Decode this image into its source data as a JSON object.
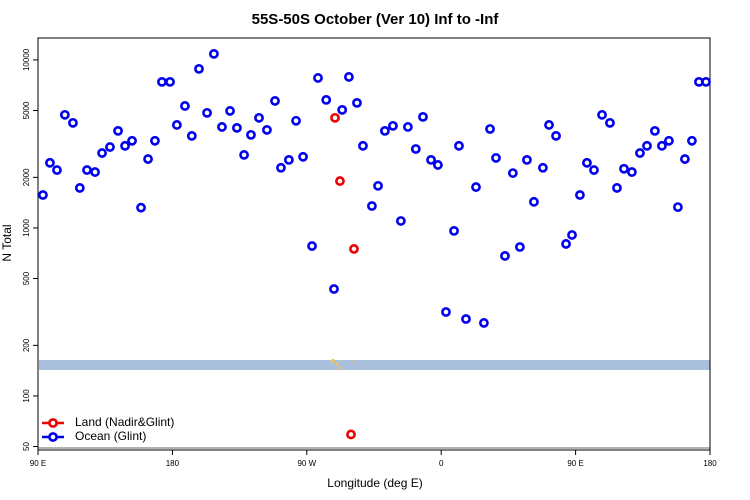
{
  "chart_data": {
    "type": "scatter",
    "title": "55S-50S October (Ver 10)   Inf to -Inf",
    "xlabel": "Longitude (deg E)",
    "ylabel": "N Total",
    "xlim": [
      90,
      540
    ],
    "xticks": [
      {
        "value": 90,
        "label": "90 E"
      },
      180,
      {
        "value": 270,
        "label": "90 W"
      },
      {
        "value": 360,
        "label": "0"
      },
      {
        "value": 450,
        "label": "90 E"
      },
      {
        "value": 540,
        "label": "180"
      }
    ],
    "ylim": [
      49,
      13500
    ],
    "yticks": [
      50,
      100,
      200,
      500,
      1000,
      2000,
      5000,
      10000
    ],
    "log_y": true,
    "legend": "lower left",
    "series": [
      {
        "name": "Land (Nadir&Glint)",
        "color": "#ee0000",
        "x": [
          288.9,
          292.2,
          301.6,
          299.6
        ],
        "values": [
          4520,
          1900,
          750,
          59
        ]
      },
      {
        "name": "Ocean (Glint)",
        "color": "#0000ee",
        "x": [
          93.3,
          98,
          102.7,
          108,
          113.4,
          118,
          122.8,
          128.2,
          132.9,
          138.2,
          143.6,
          148.3,
          153,
          159,
          163.7,
          168.3,
          173,
          178.4,
          183,
          188.4,
          193,
          197.8,
          203.2,
          207.8,
          213.2,
          218.6,
          223.2,
          228,
          232.6,
          238,
          243.3,
          248.7,
          252.7,
          258,
          262.8,
          267.5,
          273.5,
          277.5,
          283,
          288.2,
          293.7,
          298.2,
          303.6,
          307.6,
          313.6,
          317.7,
          322.3,
          327.7,
          333,
          337.7,
          343,
          347.8,
          353.2,
          357.8,
          363.2,
          368.6,
          371.9,
          376.6,
          383.3,
          388.6,
          392.7,
          396.7,
          402.7,
          408,
          412.7,
          417.4,
          422.1,
          428.1,
          432.2,
          436.9,
          443.6,
          447.6,
          452.9,
          457.6,
          462.3,
          467.7,
          473,
          477.7,
          482.4,
          487.7,
          493.1,
          497.8,
          503.1,
          507.8,
          512.5,
          518.5,
          523.2,
          527.9,
          532.6,
          537.3
        ],
        "values": [
          1570,
          2440,
          2210,
          4710,
          4220,
          1730,
          2210,
          2150,
          2790,
          3030,
          3780,
          3080,
          3300,
          1320,
          2570,
          3300,
          7400,
          7400,
          4100,
          5320,
          3530,
          8840,
          4840,
          10860,
          3990,
          4970,
          3940,
          2720,
          3580,
          4520,
          3830,
          5700,
          2280,
          2540,
          4340,
          2650,
          780,
          7810,
          5780,
          433,
          5040,
          7920,
          5550,
          3080,
          1350,
          1780,
          3780,
          4050,
          1100,
          3990,
          2950,
          4580,
          2540,
          2370,
          316,
          960,
          3080,
          287,
          1750,
          272,
          3880,
          2610,
          681,
          2120,
          770,
          2540,
          1430,
          2280,
          4100,
          3530,
          803,
          908,
          1570,
          2440,
          2210,
          4710,
          4220,
          1730,
          2250,
          2150,
          2790,
          3080,
          3780,
          3080,
          3300,
          1330,
          2570,
          3300,
          7400,
          7400
        ]
      }
    ]
  }
}
